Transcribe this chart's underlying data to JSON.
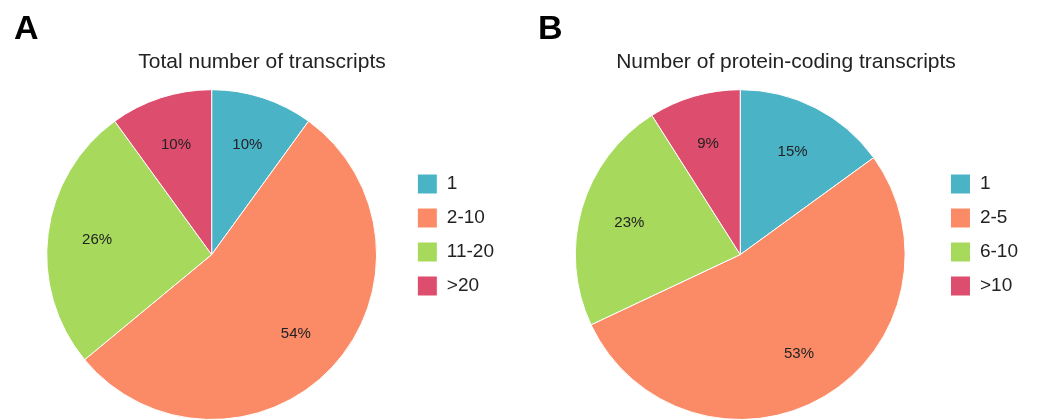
{
  "chart_data": [
    {
      "type": "pie",
      "title": "Total number of transcripts",
      "annotations": [
        "A"
      ],
      "categories": [
        "1",
        "2-10",
        "11-20",
        ">20"
      ],
      "values": [
        10,
        54,
        26,
        10
      ],
      "value_labels": [
        "10%",
        "54%",
        "26%",
        "10%"
      ],
      "colors": [
        "#4bb3c6",
        "#fb8b67",
        "#a6d95c",
        "#dd4d6e"
      ],
      "legend": "right"
    },
    {
      "type": "pie",
      "title": "Number of protein-coding transcripts",
      "annotations": [
        "B"
      ],
      "categories": [
        "1",
        "2-5",
        "6-10",
        ">10"
      ],
      "values": [
        15,
        53,
        23,
        9
      ],
      "value_labels": [
        "15%",
        "53%",
        "23%",
        "9%"
      ],
      "colors": [
        "#4bb3c6",
        "#fb8b67",
        "#a6d95c",
        "#dd4d6e"
      ],
      "legend": "right"
    }
  ]
}
